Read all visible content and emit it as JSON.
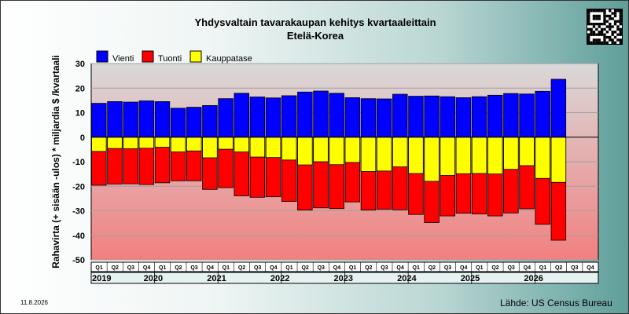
{
  "chart_data": {
    "type": "bar",
    "title": "Yhdysvaltain tavarakaupan kehitys kvartaaleittain",
    "subtitle": "Etelä-Korea",
    "ylabel": "Rahavirta (+ sisään -ulos)  * miljardia $ /kvartaali",
    "ylim": [
      -50,
      30
    ],
    "yticks": [
      30,
      20,
      10,
      0,
      -10,
      -20,
      -30,
      -40,
      -50
    ],
    "grid": true,
    "legend_position": "top-left",
    "years": [
      "2019",
      "2020",
      "2021",
      "2022",
      "2023",
      "2024",
      "2025",
      "2026"
    ],
    "quarters": [
      "Q1",
      "Q2",
      "Q3",
      "Q4",
      "Q1",
      "Q2",
      "Q3",
      "Q4",
      "Q1",
      "Q2",
      "Q3",
      "Q4",
      "Q1",
      "Q2",
      "Q3",
      "Q4",
      "Q1",
      "Q2",
      "Q3",
      "Q4",
      "Q1",
      "Q2",
      "Q3",
      "Q4",
      "Q1",
      "Q2",
      "Q3",
      "Q4",
      "Q1",
      "Q2",
      "Q3",
      "Q4"
    ],
    "series": [
      {
        "name": "Vienti",
        "color": "#0000ff",
        "values": [
          13.8,
          14.5,
          14.3,
          14.8,
          14.5,
          11.8,
          12.2,
          12.9,
          15.7,
          17.9,
          16.4,
          16.0,
          16.9,
          18.4,
          18.8,
          17.9,
          16.1,
          15.7,
          15.6,
          17.5,
          16.7,
          16.8,
          16.5,
          16.1,
          16.5,
          17.1,
          17.8,
          17.6,
          18.7,
          23.6,
          null,
          null
        ]
      },
      {
        "name": "Tuonti",
        "color": "#ff0000",
        "values": [
          -19.6,
          -19.1,
          -19.0,
          -19.3,
          -18.6,
          -17.8,
          -17.8,
          -21.3,
          -20.6,
          -23.9,
          -24.5,
          -24.3,
          -26.2,
          -29.7,
          -28.8,
          -29.1,
          -26.4,
          -29.7,
          -29.4,
          -29.6,
          -31.5,
          -34.8,
          -32.1,
          -31.0,
          -31.3,
          -32.1,
          -30.9,
          -29.2,
          -35.5,
          -42.0,
          null,
          null
        ]
      },
      {
        "name": "Kauppatase",
        "color": "#ffff00",
        "values": [
          -5.8,
          -4.6,
          -4.7,
          -4.5,
          -4.1,
          -6.0,
          -5.6,
          -8.4,
          -4.9,
          -6.0,
          -8.1,
          -8.3,
          -9.3,
          -11.3,
          -10.0,
          -11.2,
          -10.3,
          -14.0,
          -13.8,
          -12.1,
          -14.8,
          -18.0,
          -15.6,
          -14.9,
          -14.8,
          -15.0,
          -13.1,
          -11.6,
          -16.8,
          -18.4,
          null,
          null
        ]
      }
    ]
  },
  "footer": {
    "date": "11.8.2026",
    "source": "Lähde: US Census Bureau"
  },
  "colors": {
    "plot_top": "#d9d9d9",
    "plot_bottom": "#f28080",
    "grid": "#a0a0a0"
  }
}
